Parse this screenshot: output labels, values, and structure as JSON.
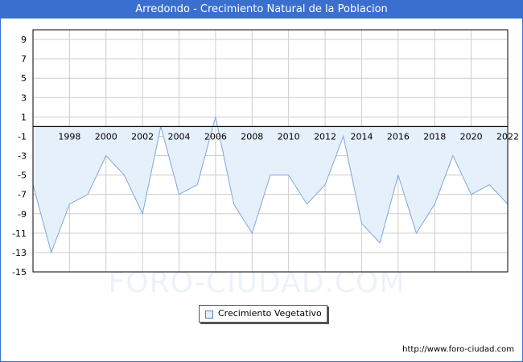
{
  "title": "Arredondo - Crecimiento Natural de la Poblacion",
  "watermark": "FORO-CIUDAD.COM",
  "footer_url": "http://www.foro-ciudad.com",
  "colors": {
    "header": "#3a6fd0",
    "area_fill": "#e6f0fb",
    "line": "#7fa6dc",
    "grid": "#cccccc"
  },
  "chart_data": {
    "type": "area",
    "x": [
      1996,
      1997,
      1998,
      1999,
      2000,
      2001,
      2002,
      2003,
      2004,
      2005,
      2006,
      2007,
      2008,
      2009,
      2010,
      2011,
      2012,
      2013,
      2014,
      2015,
      2016,
      2017,
      2018,
      2019,
      2020,
      2021,
      2022
    ],
    "series": [
      {
        "name": "Crecimiento Vegetativo",
        "values": [
          -6,
          -13,
          -8,
          -7,
          -3,
          -5,
          -9,
          0,
          -7,
          -6,
          1,
          -8,
          -11,
          -5,
          -5,
          -8,
          -6,
          -1,
          -10,
          -12,
          -5,
          -11,
          -8,
          -3,
          -7,
          -6,
          -8
        ]
      }
    ],
    "x_ticks": [
      "1998",
      "2000",
      "2002",
      "2004",
      "2006",
      "2008",
      "2010",
      "2012",
      "2014",
      "2016",
      "2018",
      "2020",
      "2022"
    ],
    "y_ticks": [
      "9",
      "7",
      "5",
      "3",
      "1",
      "-1",
      "-3",
      "-5",
      "-7",
      "-9",
      "-11",
      "-13",
      "-15"
    ],
    "xlim": [
      1996,
      2022
    ],
    "ylim": [
      -15,
      10
    ],
    "grid": true,
    "legend_position": "bottom-center"
  }
}
